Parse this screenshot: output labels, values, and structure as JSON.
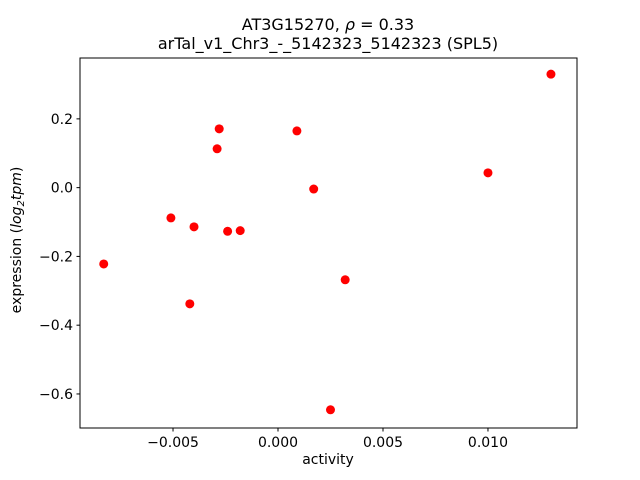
{
  "chart_data": {
    "type": "scatter",
    "title": {
      "line1_prefix": "AT3G15270, ",
      "line1_rho": "ρ",
      "line1_suffix": " = 0.33",
      "line2": "arTal_v1_Chr3_-_5142323_5142323 (SPL5)"
    },
    "xlabel": "activity",
    "ylabel": {
      "prefix": "expression (",
      "log": "log",
      "sub": "2",
      "var": "tpm",
      "suffix": ")"
    },
    "point_color": "#ff0000",
    "axis_color": "#000000",
    "background_color": "#ffffff",
    "marker_radius": 4.5,
    "xlim": [
      -0.00943,
      0.01424
    ],
    "ylim": [
      -0.699,
      0.377
    ],
    "grid": false,
    "legend": null,
    "xticks": [
      {
        "value": -0.005,
        "label": "−0.005"
      },
      {
        "value": 0.0,
        "label": "0.000"
      },
      {
        "value": 0.005,
        "label": "0.005"
      },
      {
        "value": 0.01,
        "label": "0.010"
      }
    ],
    "yticks": [
      {
        "value": 0.2,
        "label": "0.2"
      },
      {
        "value": 0.0,
        "label": "0.0"
      },
      {
        "value": -0.2,
        "label": "−0.2"
      },
      {
        "value": -0.4,
        "label": "−0.4"
      },
      {
        "value": -0.6,
        "label": "−0.6"
      }
    ],
    "points": [
      {
        "x": -0.0083,
        "y": -0.222
      },
      {
        "x": -0.0051,
        "y": -0.088
      },
      {
        "x": -0.0042,
        "y": -0.338
      },
      {
        "x": -0.004,
        "y": -0.114
      },
      {
        "x": -0.0029,
        "y": 0.113
      },
      {
        "x": -0.0028,
        "y": 0.171
      },
      {
        "x": -0.0024,
        "y": -0.127
      },
      {
        "x": -0.0018,
        "y": -0.125
      },
      {
        "x": 0.0009,
        "y": 0.165
      },
      {
        "x": 0.0017,
        "y": -0.004
      },
      {
        "x": 0.0025,
        "y": -0.646
      },
      {
        "x": 0.0032,
        "y": -0.268
      },
      {
        "x": 0.01,
        "y": 0.043
      },
      {
        "x": 0.013,
        "y": 0.33
      }
    ]
  }
}
